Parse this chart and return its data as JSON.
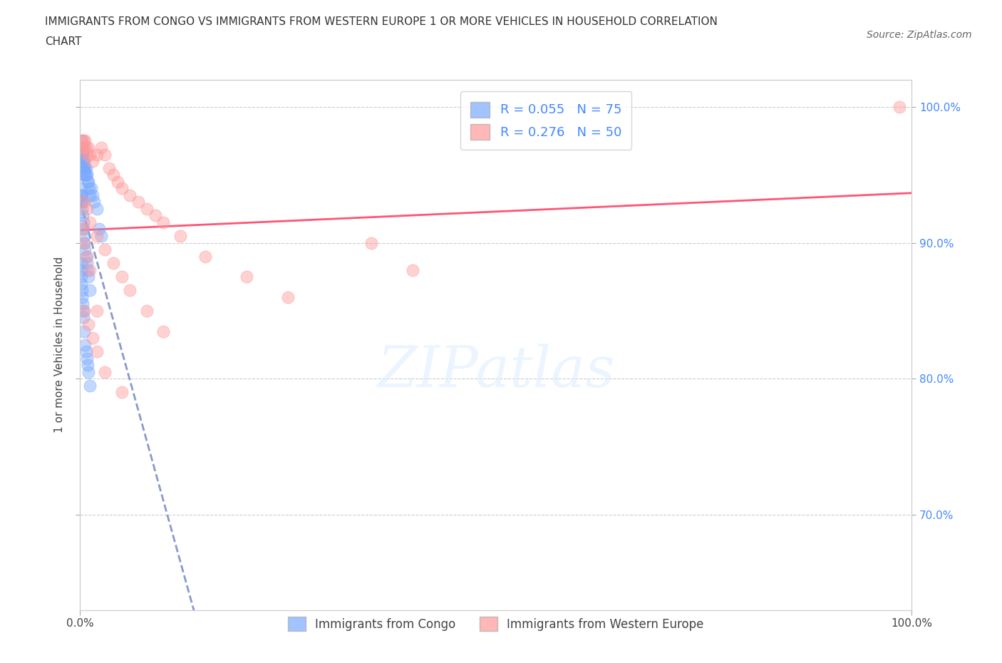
{
  "title_line1": "IMMIGRANTS FROM CONGO VS IMMIGRANTS FROM WESTERN EUROPE 1 OR MORE VEHICLES IN HOUSEHOLD CORRELATION",
  "title_line2": "CHART",
  "source": "Source: ZipAtlas.com",
  "ylabel": "1 or more Vehicles in Household",
  "ytick_labels": [
    "70.0%",
    "80.0%",
    "90.0%",
    "100.0%"
  ],
  "ytick_values": [
    70.0,
    80.0,
    90.0,
    100.0
  ],
  "legend_label1": "Immigrants from Congo",
  "legend_label2": "Immigrants from Western Europe",
  "R_congo": 0.055,
  "N_congo": 75,
  "R_western": 0.276,
  "N_western": 50,
  "color_congo": "#7aaaff",
  "color_western": "#ff9999",
  "color_trend_congo": "#8899cc",
  "color_trend_western": "#ff5577",
  "color_text_blue": "#4488ff",
  "congo_x": [
    0.1,
    0.1,
    0.1,
    0.1,
    0.1,
    0.15,
    0.15,
    0.15,
    0.15,
    0.2,
    0.2,
    0.2,
    0.2,
    0.25,
    0.25,
    0.3,
    0.3,
    0.3,
    0.35,
    0.35,
    0.4,
    0.4,
    0.45,
    0.5,
    0.5,
    0.6,
    0.6,
    0.7,
    0.7,
    0.8,
    0.9,
    1.0,
    1.1,
    1.2,
    1.3,
    1.5,
    1.7,
    2.0,
    2.3,
    2.5,
    0.1,
    0.1,
    0.1,
    0.15,
    0.15,
    0.2,
    0.2,
    0.25,
    0.3,
    0.35,
    0.4,
    0.45,
    0.5,
    0.6,
    0.7,
    0.8,
    0.9,
    1.0,
    1.2,
    0.1,
    0.1,
    0.1,
    0.15,
    0.2,
    0.25,
    0.3,
    0.35,
    0.4,
    0.5,
    0.6,
    0.7,
    0.8,
    0.9,
    1.0,
    1.2
  ],
  "congo_y": [
    97.5,
    97.0,
    96.5,
    96.0,
    95.5,
    97.0,
    96.5,
    96.0,
    95.5,
    97.0,
    96.5,
    96.0,
    95.0,
    96.5,
    96.0,
    96.5,
    96.0,
    95.5,
    96.0,
    95.5,
    96.5,
    95.5,
    95.5,
    96.0,
    95.0,
    95.5,
    95.0,
    95.5,
    95.0,
    95.0,
    94.5,
    94.5,
    94.0,
    93.5,
    94.0,
    93.5,
    93.0,
    92.5,
    91.0,
    90.5,
    94.0,
    93.5,
    93.0,
    93.5,
    93.0,
    93.5,
    93.0,
    92.5,
    92.0,
    91.5,
    91.0,
    90.5,
    90.0,
    89.5,
    89.0,
    88.5,
    88.0,
    87.5,
    86.5,
    88.5,
    88.0,
    87.5,
    87.0,
    86.5,
    86.0,
    85.5,
    85.0,
    84.5,
    83.5,
    82.5,
    82.0,
    81.5,
    81.0,
    80.5,
    79.5
  ],
  "western_x": [
    0.2,
    0.3,
    0.4,
    0.5,
    0.6,
    0.7,
    0.8,
    1.0,
    1.2,
    1.5,
    2.0,
    2.5,
    3.0,
    3.5,
    4.0,
    4.5,
    5.0,
    6.0,
    7.0,
    8.0,
    9.0,
    10.0,
    12.0,
    15.0,
    20.0,
    25.0,
    0.5,
    0.8,
    1.2,
    2.0,
    3.0,
    4.0,
    5.0,
    6.0,
    8.0,
    10.0,
    0.3,
    0.5,
    0.8,
    1.2,
    2.0,
    35.0,
    40.0,
    0.5,
    1.0,
    1.5,
    2.0,
    3.0,
    5.0,
    98.5
  ],
  "western_y": [
    97.5,
    97.0,
    97.5,
    97.0,
    97.5,
    97.0,
    96.5,
    97.0,
    96.5,
    96.0,
    96.5,
    97.0,
    96.5,
    95.5,
    95.0,
    94.5,
    94.0,
    93.5,
    93.0,
    92.5,
    92.0,
    91.5,
    90.5,
    89.0,
    87.5,
    86.0,
    93.0,
    92.5,
    91.5,
    90.5,
    89.5,
    88.5,
    87.5,
    86.5,
    85.0,
    83.5,
    91.0,
    90.0,
    89.0,
    88.0,
    85.0,
    90.0,
    88.0,
    85.0,
    84.0,
    83.0,
    82.0,
    80.5,
    79.0,
    100.0
  ]
}
